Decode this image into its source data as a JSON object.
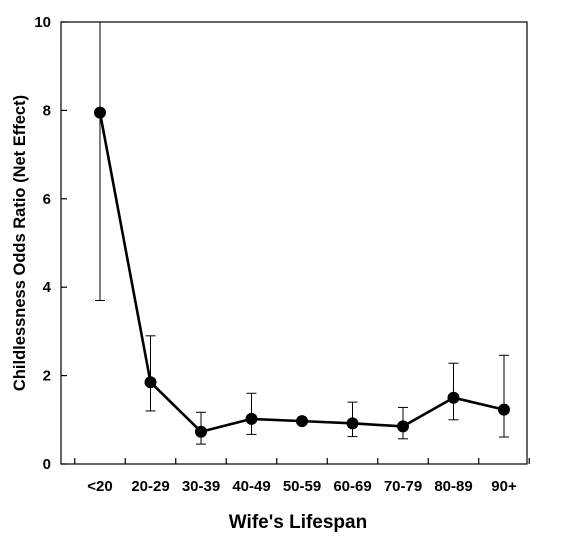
{
  "chart_data": {
    "type": "line",
    "title": "",
    "xlabel": "Wife's Lifespan",
    "ylabel": "Childlessness Odds Ratio (Net Effect)",
    "categories": [
      "<20",
      "20-29",
      "30-39",
      "40-49",
      "50-59",
      "60-69",
      "70-79",
      "80-89",
      "90+"
    ],
    "series": [
      {
        "values": [
          7.95,
          1.85,
          0.73,
          1.02,
          0.97,
          0.92,
          0.85,
          1.5,
          1.23
        ],
        "error_lower": [
          3.7,
          1.2,
          0.45,
          0.67,
          0.97,
          0.62,
          0.57,
          1.0,
          0.61
        ],
        "error_upper": [
          10.0,
          2.9,
          1.17,
          1.6,
          0.97,
          1.4,
          1.28,
          2.28,
          2.46
        ]
      }
    ],
    "ylim": [
      0,
      10
    ],
    "yticks": [
      0,
      2,
      4,
      6,
      8,
      10
    ],
    "grid": false,
    "legend": "none",
    "marker": "filled-circle",
    "line_color": "#000000"
  }
}
